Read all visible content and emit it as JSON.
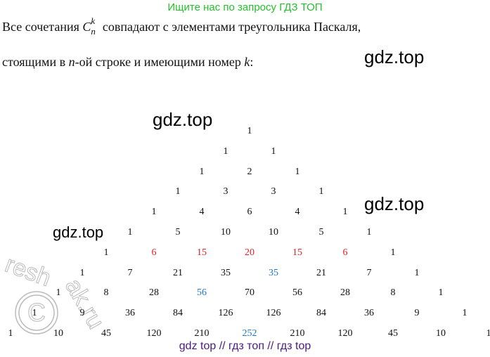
{
  "banner": "Ищите нас по запросу ГДЗ ТОП",
  "paragraph": {
    "line1_before": "Все сочетания ",
    "symbol_C": "C",
    "symbol_n": "n",
    "symbol_k": "k",
    "line1_after": " совпадают с элементами треугольника Паскаля,",
    "line2_before": "стоящими в ",
    "line2_n": "n",
    "line2_middle": "-ой строке и имеющими номер ",
    "line2_k": "k",
    "line2_after": ":"
  },
  "watermarks": [
    "gdz.top",
    "gdz.top",
    "gdz.top",
    "gdz.top"
  ],
  "reshak_logo": "reshak.ru",
  "triangle": {
    "rows": [
      [
        "1"
      ],
      [
        "1",
        "1"
      ],
      [
        "1",
        "2",
        "1"
      ],
      [
        "1",
        "3",
        "3",
        "1"
      ],
      [
        "1",
        "4",
        "6",
        "4",
        "1"
      ],
      [
        "1",
        "5",
        "10",
        "10",
        "5",
        "1"
      ],
      [
        "1",
        "6",
        "15",
        "20",
        "15",
        "6",
        "1"
      ],
      [
        "1",
        "7",
        "21",
        "35",
        "35",
        "21",
        "7",
        "1"
      ],
      [
        "1",
        "8",
        "28",
        "56",
        "70",
        "56",
        "28",
        "8",
        "1"
      ],
      [
        "1",
        "9",
        "36",
        "84",
        "126",
        "126",
        "84",
        "36",
        "9",
        "1"
      ],
      [
        "1",
        "10",
        "45",
        "120",
        "210",
        "252",
        "210",
        "120",
        "45",
        "10",
        "1"
      ]
    ],
    "highlights": [
      {
        "row": 6,
        "index": 1,
        "color": "#e0202a"
      },
      {
        "row": 6,
        "index": 2,
        "color": "#e0202a"
      },
      {
        "row": 6,
        "index": 3,
        "color": "#e0202a"
      },
      {
        "row": 6,
        "index": 4,
        "color": "#e0202a"
      },
      {
        "row": 6,
        "index": 5,
        "color": "#e0202a"
      },
      {
        "row": 7,
        "index": 4,
        "color": "#1f78c8"
      },
      {
        "row": 8,
        "index": 3,
        "color": "#1f78c8"
      },
      {
        "row": 10,
        "index": 5,
        "color": "#1f78c8"
      }
    ]
  },
  "footer": "gdz top  //  гдз топ  //  гдз top"
}
